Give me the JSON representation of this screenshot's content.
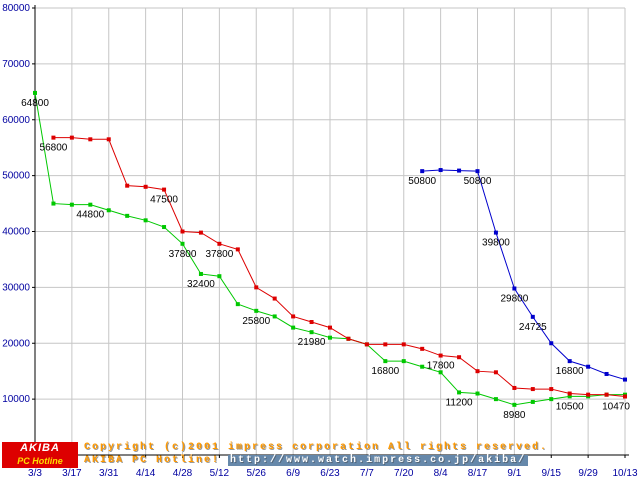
{
  "chart_data": {
    "type": "line",
    "title": "",
    "xlabel": "",
    "ylabel": "",
    "ylim": [
      0,
      80000
    ],
    "y_ticks": [
      0,
      10000,
      20000,
      30000,
      40000,
      50000,
      60000,
      70000,
      80000
    ],
    "x_tick_labels": [
      "3/3",
      "3/17",
      "3/31",
      "4/14",
      "4/28",
      "5/12",
      "5/26",
      "6/9",
      "6/23",
      "7/7",
      "7/20",
      "8/4",
      "8/17",
      "9/1",
      "9/15",
      "9/29",
      "10/13"
    ],
    "weeks_per_tick": 2,
    "x_count": 33,
    "grid": true,
    "legend": "none",
    "colors": {
      "red": "#dd0000",
      "green": "#00c800",
      "blue": "#0000cc",
      "grid": "#c6c6c6",
      "axis": "#000000",
      "axis_text": "#0000a0",
      "label_text": "#000000"
    },
    "series": [
      {
        "name": "green-price-line",
        "color": "#00c800",
        "points": [
          [
            0,
            64800,
            1
          ],
          [
            1,
            45000
          ],
          [
            2,
            44800
          ],
          [
            3,
            44800,
            1
          ],
          [
            4,
            43800
          ],
          [
            5,
            42800
          ],
          [
            6,
            42000
          ],
          [
            7,
            40800
          ],
          [
            8,
            37800,
            1
          ],
          [
            9,
            32400,
            1
          ],
          [
            10,
            32000
          ],
          [
            11,
            27000
          ],
          [
            12,
            25800,
            1
          ],
          [
            13,
            24800
          ],
          [
            14,
            22800
          ],
          [
            15,
            21980,
            1
          ],
          [
            16,
            21000
          ],
          [
            17,
            20800
          ],
          [
            18,
            19800
          ],
          [
            19,
            16800,
            1
          ],
          [
            20,
            16800
          ],
          [
            21,
            15800
          ],
          [
            22,
            14800
          ],
          [
            23,
            11200,
            1
          ],
          [
            24,
            11000
          ],
          [
            25,
            10000
          ],
          [
            26,
            8980,
            1
          ],
          [
            27,
            9500
          ],
          [
            28,
            10000
          ],
          [
            29,
            10500,
            1
          ],
          [
            30,
            10500
          ],
          [
            31,
            10800
          ],
          [
            32,
            10800
          ]
        ]
      },
      {
        "name": "red-price-line",
        "color": "#dd0000",
        "points": [
          [
            1,
            56800,
            1
          ],
          [
            2,
            56800
          ],
          [
            3,
            56500
          ],
          [
            4,
            56500
          ],
          [
            5,
            48200
          ],
          [
            6,
            48000
          ],
          [
            7,
            47500,
            1
          ],
          [
            8,
            40000
          ],
          [
            9,
            39800
          ],
          [
            10,
            37800,
            1
          ],
          [
            11,
            36800
          ],
          [
            12,
            30000
          ],
          [
            13,
            28000
          ],
          [
            14,
            24800
          ],
          [
            15,
            23800
          ],
          [
            16,
            22800
          ],
          [
            17,
            20800
          ],
          [
            18,
            19800
          ],
          [
            19,
            19800
          ],
          [
            20,
            19800
          ],
          [
            21,
            19000
          ],
          [
            22,
            17800,
            1
          ],
          [
            23,
            17500
          ],
          [
            24,
            15000
          ],
          [
            25,
            14800
          ],
          [
            26,
            12000
          ],
          [
            27,
            11800
          ],
          [
            28,
            11800
          ],
          [
            29,
            11000
          ],
          [
            30,
            10800
          ],
          [
            31,
            10800
          ],
          [
            32,
            10470,
            1
          ]
        ]
      },
      {
        "name": "blue-price-line",
        "color": "#0000cc",
        "points": [
          [
            21,
            50800,
            1
          ],
          [
            22,
            51000
          ],
          [
            23,
            50900
          ],
          [
            24,
            50800,
            1
          ],
          [
            25,
            39800,
            1
          ],
          [
            26,
            29800,
            1
          ],
          [
            27,
            24725,
            1
          ],
          [
            28,
            20000
          ],
          [
            29,
            16800,
            1
          ],
          [
            30,
            15800
          ],
          [
            31,
            14500
          ],
          [
            32,
            13500
          ]
        ]
      }
    ]
  },
  "footer": {
    "logo": {
      "line1": "AKIBA",
      "line2": "PC Hotline"
    },
    "copyright": "Copyright (c)2001 impress corporation All rights reserved.",
    "site_name": "AKIBA PC Hotline!",
    "url": "http://www.watch.impress.co.jp/akiba/"
  }
}
